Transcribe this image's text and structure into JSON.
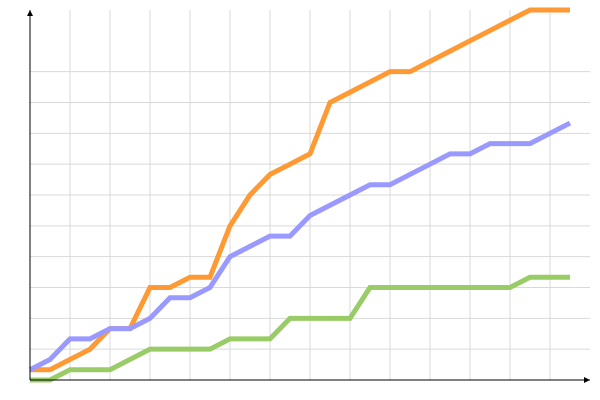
{
  "chart_data": {
    "type": "line",
    "title": "",
    "xlabel": "",
    "ylabel": "",
    "xlim": [
      0,
      28
    ],
    "ylim": [
      0,
      36
    ],
    "x_grid_step": 2,
    "y_grid_step": 3,
    "grid": true,
    "x": [
      0,
      1,
      2,
      3,
      4,
      5,
      6,
      7,
      8,
      9,
      10,
      11,
      12,
      13,
      14,
      15,
      16,
      17,
      18,
      19,
      20,
      21,
      22,
      23,
      24,
      25,
      26,
      27
    ],
    "series": [
      {
        "color": "#ff9933",
        "values": [
          1,
          1,
          2,
          3,
          5,
          5,
          9,
          9,
          10,
          10,
          15,
          18,
          20,
          21,
          22,
          27,
          28,
          29,
          30,
          30,
          31,
          32,
          33,
          34,
          35,
          36,
          36,
          36
        ]
      },
      {
        "color": "#9999ff",
        "values": [
          1,
          2,
          4,
          4,
          5,
          5,
          6,
          8,
          8,
          9,
          12,
          13,
          14,
          14,
          16,
          17,
          18,
          19,
          19,
          20,
          21,
          22,
          22,
          23,
          23,
          23,
          24,
          25
        ]
      },
      {
        "color": "#99cc66",
        "values": [
          0,
          0,
          1,
          1,
          1,
          2,
          3,
          3,
          3,
          3,
          4,
          4,
          4,
          6,
          6,
          6,
          6,
          9,
          9,
          9,
          9,
          9,
          9,
          9,
          9,
          10,
          10,
          10
        ]
      }
    ]
  }
}
